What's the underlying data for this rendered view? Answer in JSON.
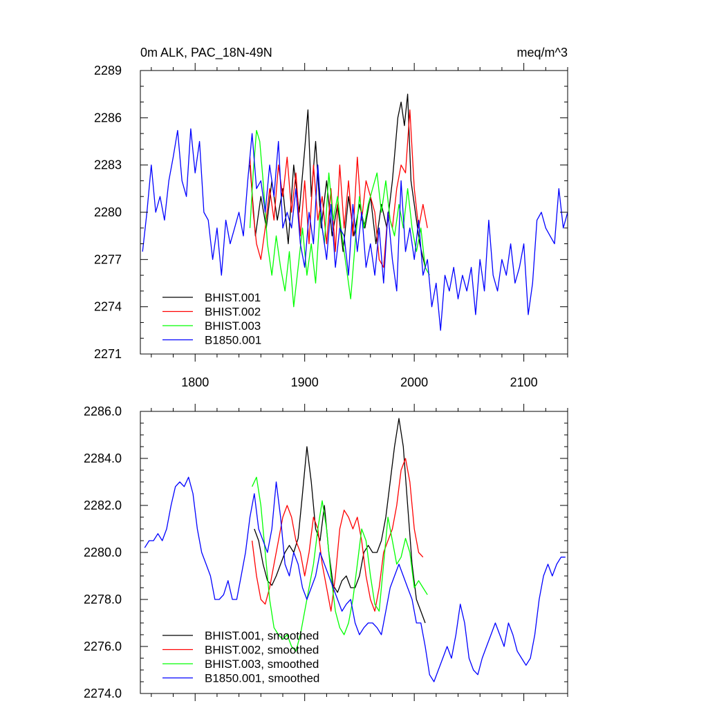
{
  "chart_data": [
    {
      "type": "line",
      "title_left": "0m ALK, PAC_18N-49N",
      "title_right": "meq/m^3",
      "xlim": [
        1750,
        2140
      ],
      "ylim": [
        2271,
        2289
      ],
      "xticks": [
        1800,
        1900,
        2000,
        2100
      ],
      "yticks": [
        2271,
        2274,
        2277,
        2280,
        2283,
        2286,
        2289
      ],
      "ytick_labels": [
        "2271",
        "2274",
        "2277",
        "2280",
        "2283",
        "2286",
        "2289"
      ],
      "legend_position": "bottom-left",
      "series": [
        {
          "name": "BHIST.001",
          "color": "#000000",
          "x": [
            1850,
            1855,
            1860,
            1865,
            1870,
            1875,
            1880,
            1885,
            1890,
            1895,
            1900,
            1903,
            1906,
            1910,
            1915,
            1920,
            1925,
            1930,
            1935,
            1940,
            1945,
            1950,
            1955,
            1960,
            1965,
            1970,
            1975,
            1980,
            1985,
            1988,
            1991,
            1994,
            1997,
            2000,
            2005,
            2010
          ],
          "y": [
            2283.0,
            2278.5,
            2281.0,
            2279.0,
            2282.0,
            2279.5,
            2281.5,
            2278.0,
            2283.0,
            2280.0,
            2284.0,
            2286.5,
            2281.0,
            2284.5,
            2279.0,
            2282.0,
            2278.5,
            2280.5,
            2277.5,
            2281.0,
            2278.5,
            2280.5,
            2279.0,
            2281.0,
            2278.0,
            2280.5,
            2279.0,
            2282.0,
            2286.0,
            2287.0,
            2285.5,
            2287.5,
            2282.0,
            2280.5,
            2278.0,
            2276.5
          ]
        },
        {
          "name": "BHIST.002",
          "color": "#ff0000",
          "x": [
            1850,
            1853,
            1856,
            1860,
            1864,
            1868,
            1872,
            1876,
            1880,
            1884,
            1888,
            1892,
            1896,
            1900,
            1904,
            1908,
            1912,
            1916,
            1920,
            1924,
            1928,
            1932,
            1936,
            1940,
            1944,
            1948,
            1952,
            1956,
            1960,
            1964,
            1968,
            1972,
            1976,
            1980,
            1984,
            1988,
            1992,
            1996,
            2000,
            2004,
            2008,
            2012
          ],
          "y": [
            2283.5,
            2280.0,
            2278.0,
            2277.0,
            2279.0,
            2281.5,
            2279.5,
            2283.0,
            2281.0,
            2283.5,
            2280.0,
            2282.5,
            2278.5,
            2282.0,
            2278.0,
            2283.0,
            2279.5,
            2281.0,
            2278.0,
            2281.5,
            2277.5,
            2283.0,
            2279.0,
            2282.0,
            2278.5,
            2283.5,
            2279.5,
            2282.0,
            2281.0,
            2280.0,
            2277.0,
            2276.5,
            2280.0,
            2279.0,
            2281.5,
            2283.0,
            2282.5,
            2286.5,
            2281.5,
            2279.0,
            2280.5,
            2279.0
          ]
        },
        {
          "name": "BHIST.003",
          "color": "#00ff00",
          "x": [
            1850,
            1853,
            1856,
            1859,
            1862,
            1866,
            1870,
            1874,
            1878,
            1882,
            1886,
            1890,
            1894,
            1898,
            1902,
            1906,
            1910,
            1914,
            1918,
            1922,
            1926,
            1930,
            1934,
            1938,
            1942,
            1946,
            1950,
            1954,
            1958,
            1962,
            1966,
            1970,
            1974,
            1978,
            1982,
            1986,
            1990,
            1994,
            1998,
            2002,
            2006,
            2010,
            2014
          ],
          "y": [
            2279.0,
            2282.5,
            2285.2,
            2284.5,
            2282.0,
            2278.0,
            2276.0,
            2278.5,
            2276.5,
            2275.0,
            2277.5,
            2274.0,
            2276.5,
            2279.0,
            2276.0,
            2278.0,
            2275.5,
            2280.0,
            2278.0,
            2282.5,
            2279.5,
            2281.0,
            2278.5,
            2276.5,
            2274.5,
            2278.0,
            2281.0,
            2279.0,
            2280.5,
            2281.5,
            2282.5,
            2280.0,
            2282.0,
            2279.5,
            2278.5,
            2280.5,
            2279.0,
            2281.5,
            2279.0,
            2277.5,
            2279.0,
            2276.5,
            2276.0
          ]
        },
        {
          "name": "B1850.001",
          "color": "#0000ff",
          "x": [
            1752,
            1756,
            1760,
            1764,
            1768,
            1772,
            1776,
            1780,
            1784,
            1788,
            1792,
            1796,
            1800,
            1804,
            1808,
            1812,
            1816,
            1820,
            1824,
            1828,
            1832,
            1836,
            1840,
            1844,
            1848,
            1852,
            1856,
            1860,
            1864,
            1868,
            1872,
            1876,
            1880,
            1884,
            1888,
            1892,
            1896,
            1900,
            1904,
            1908,
            1912,
            1916,
            1920,
            1924,
            1928,
            1932,
            1936,
            1940,
            1944,
            1948,
            1952,
            1956,
            1960,
            1964,
            1968,
            1972,
            1976,
            1980,
            1984,
            1988,
            1992,
            1996,
            2000,
            2004,
            2008,
            2012,
            2016,
            2020,
            2024,
            2028,
            2032,
            2036,
            2040,
            2044,
            2048,
            2052,
            2056,
            2060,
            2064,
            2068,
            2072,
            2076,
            2080,
            2084,
            2088,
            2092,
            2096,
            2100,
            2104,
            2108,
            2112,
            2116,
            2120,
            2124,
            2128,
            2132,
            2136,
            2140
          ],
          "y": [
            2277.5,
            2280.0,
            2283.0,
            2280.0,
            2281.0,
            2279.5,
            2282.0,
            2283.5,
            2285.2,
            2282.0,
            2281.0,
            2285.3,
            2282.5,
            2284.5,
            2280.0,
            2279.5,
            2277.0,
            2279.0,
            2276.0,
            2279.5,
            2278.0,
            2279.0,
            2280.0,
            2278.5,
            2282.0,
            2285.0,
            2281.5,
            2282.0,
            2280.0,
            2283.0,
            2281.0,
            2284.5,
            2279.0,
            2280.0,
            2279.0,
            2281.5,
            2278.0,
            2276.5,
            2280.0,
            2278.0,
            2283.0,
            2279.0,
            2277.0,
            2280.5,
            2276.5,
            2279.0,
            2278.5,
            2276.0,
            2280.5,
            2277.5,
            2280.0,
            2276.5,
            2278.0,
            2276.0,
            2279.0,
            2275.5,
            2280.0,
            2277.0,
            2275.0,
            2282.0,
            2277.5,
            2279.0,
            2277.0,
            2279.5,
            2276.0,
            2277.0,
            2274.0,
            2275.5,
            2272.5,
            2276.0,
            2275.0,
            2276.5,
            2274.5,
            2276.0,
            2275.0,
            2276.5,
            2273.5,
            2277.0,
            2275.0,
            2279.5,
            2276.0,
            2275.0,
            2277.0,
            2276.0,
            2278.0,
            2275.5,
            2276.5,
            2278.0,
            2273.5,
            2275.5,
            2279.5,
            2280.0,
            2279.0,
            2278.5,
            2278.0,
            2281.5,
            2279.0,
            2280.0
          ]
        }
      ]
    },
    {
      "type": "line",
      "xlim": [
        1750,
        2140
      ],
      "ylim": [
        2274.0,
        2286.0
      ],
      "xticks": [
        1800,
        1900,
        2000,
        2100
      ],
      "yticks": [
        2274.0,
        2276.0,
        2278.0,
        2280.0,
        2282.0,
        2284.0,
        2286.0
      ],
      "ytick_labels": [
        "2274.0",
        "2276.0",
        "2278.0",
        "2280.0",
        "2282.0",
        "2284.0",
        "2286.0"
      ],
      "legend_position": "bottom-left",
      "series": [
        {
          "name": "BHIST.001, smoothed",
          "color": "#000000",
          "x": [
            1854,
            1858,
            1862,
            1866,
            1870,
            1874,
            1878,
            1882,
            1886,
            1890,
            1894,
            1898,
            1902,
            1906,
            1910,
            1914,
            1918,
            1922,
            1926,
            1930,
            1934,
            1938,
            1942,
            1946,
            1950,
            1954,
            1958,
            1962,
            1966,
            1970,
            1974,
            1978,
            1982,
            1986,
            1990,
            1994,
            1998,
            2002,
            2006,
            2010
          ],
          "y": [
            2281.0,
            2280.5,
            2279.5,
            2278.8,
            2278.6,
            2279.0,
            2279.5,
            2280.0,
            2280.3,
            2280.0,
            2280.6,
            2282.5,
            2284.5,
            2283.0,
            2281.0,
            2280.5,
            2282.0,
            2280.0,
            2278.6,
            2278.3,
            2278.8,
            2279.0,
            2278.5,
            2278.5,
            2279.0,
            2280.0,
            2280.3,
            2280.0,
            2280.0,
            2280.5,
            2281.5,
            2283.0,
            2284.5,
            2285.7,
            2284.5,
            2282.0,
            2279.5,
            2278.0,
            2277.5,
            2277.0
          ]
        },
        {
          "name": "BHIST.002, smoothed",
          "color": "#ff0000",
          "x": [
            1852,
            1856,
            1860,
            1864,
            1868,
            1872,
            1876,
            1880,
            1884,
            1888,
            1892,
            1896,
            1900,
            1904,
            1908,
            1912,
            1916,
            1920,
            1924,
            1928,
            1932,
            1936,
            1940,
            1944,
            1948,
            1952,
            1956,
            1960,
            1964,
            1968,
            1972,
            1976,
            1980,
            1984,
            1988,
            1992,
            1996,
            2000,
            2004,
            2008
          ],
          "y": [
            2280.5,
            2279.0,
            2278.0,
            2277.8,
            2278.5,
            2279.5,
            2280.5,
            2281.5,
            2282.0,
            2281.5,
            2280.5,
            2280.0,
            2279.0,
            2280.0,
            2281.5,
            2281.0,
            2279.5,
            2278.5,
            2277.5,
            2279.0,
            2281.0,
            2281.8,
            2281.5,
            2281.0,
            2281.5,
            2280.5,
            2279.0,
            2278.0,
            2277.5,
            2278.5,
            2280.0,
            2280.5,
            2281.0,
            2282.0,
            2283.5,
            2284.0,
            2283.0,
            2281.0,
            2280.0,
            2279.8
          ]
        },
        {
          "name": "BHIST.003, smoothed",
          "color": "#00ff00",
          "x": [
            1852,
            1856,
            1860,
            1864,
            1868,
            1872,
            1876,
            1880,
            1884,
            1888,
            1892,
            1896,
            1900,
            1904,
            1908,
            1912,
            1916,
            1920,
            1924,
            1928,
            1932,
            1936,
            1940,
            1944,
            1948,
            1952,
            1956,
            1960,
            1964,
            1968,
            1972,
            1976,
            1980,
            1984,
            1988,
            1992,
            1996,
            2000,
            2004,
            2008,
            2012
          ],
          "y": [
            2282.8,
            2283.2,
            2282.0,
            2280.0,
            2278.0,
            2276.8,
            2276.5,
            2276.3,
            2276.5,
            2276.0,
            2275.8,
            2276.5,
            2277.5,
            2278.5,
            2279.5,
            2281.0,
            2282.2,
            2281.0,
            2279.0,
            2277.5,
            2276.8,
            2276.5,
            2277.0,
            2278.0,
            2279.5,
            2281.0,
            2280.5,
            2279.0,
            2277.8,
            2277.5,
            2279.5,
            2281.5,
            2280.5,
            2279.5,
            2279.8,
            2280.6,
            2280.0,
            2278.5,
            2278.8,
            2278.5,
            2278.2
          ]
        },
        {
          "name": "B1850.001, smoothed",
          "color": "#0000ff",
          "x": [
            1754,
            1758,
            1762,
            1766,
            1770,
            1774,
            1778,
            1782,
            1786,
            1790,
            1794,
            1798,
            1802,
            1806,
            1810,
            1814,
            1818,
            1822,
            1826,
            1830,
            1834,
            1838,
            1842,
            1846,
            1850,
            1854,
            1858,
            1862,
            1866,
            1870,
            1874,
            1878,
            1882,
            1886,
            1890,
            1894,
            1898,
            1902,
            1906,
            1910,
            1914,
            1918,
            1922,
            1926,
            1930,
            1934,
            1938,
            1942,
            1946,
            1950,
            1954,
            1958,
            1962,
            1966,
            1970,
            1974,
            1978,
            1982,
            1986,
            1990,
            1994,
            1998,
            2002,
            2006,
            2010,
            2014,
            2018,
            2022,
            2026,
            2030,
            2034,
            2038,
            2042,
            2046,
            2050,
            2054,
            2058,
            2062,
            2066,
            2070,
            2074,
            2078,
            2082,
            2086,
            2090,
            2094,
            2098,
            2102,
            2106,
            2110,
            2114,
            2118,
            2122,
            2126,
            2130,
            2134,
            2138
          ],
          "y": [
            2280.2,
            2280.5,
            2280.5,
            2280.8,
            2280.5,
            2281.0,
            2282.0,
            2282.8,
            2283.0,
            2282.8,
            2283.2,
            2282.5,
            2281.0,
            2280.0,
            2279.5,
            2279.0,
            2278.0,
            2278.0,
            2278.2,
            2278.8,
            2278.0,
            2278.0,
            2279.0,
            2280.0,
            2281.5,
            2282.5,
            2281.0,
            2280.5,
            2280.0,
            2281.0,
            2283.0,
            2281.5,
            2279.5,
            2279.0,
            2280.0,
            2279.5,
            2278.5,
            2278.0,
            2278.5,
            2279.0,
            2280.0,
            2279.5,
            2279.0,
            2278.5,
            2278.0,
            2277.5,
            2277.8,
            2278.0,
            2277.0,
            2276.5,
            2276.8,
            2277.0,
            2277.0,
            2276.8,
            2276.5,
            2277.5,
            2278.5,
            2279.0,
            2279.5,
            2279.0,
            2278.5,
            2278.0,
            2277.0,
            2277.0,
            2276.0,
            2274.8,
            2274.5,
            2275.0,
            2275.5,
            2276.0,
            2275.5,
            2276.5,
            2277.8,
            2277.0,
            2275.5,
            2275.0,
            2274.8,
            2275.5,
            2276.0,
            2276.5,
            2277.0,
            2276.5,
            2276.0,
            2277.0,
            2276.5,
            2275.8,
            2275.5,
            2275.2,
            2275.5,
            2276.5,
            2278.0,
            2279.0,
            2279.5,
            2279.0,
            2279.5,
            2279.8,
            2279.8
          ]
        }
      ]
    }
  ]
}
